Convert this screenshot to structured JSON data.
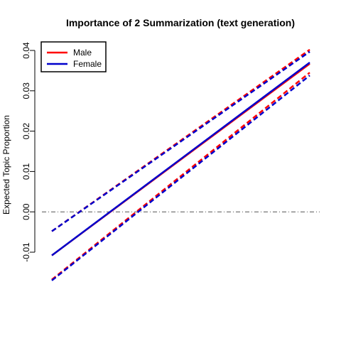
{
  "chart_data": {
    "type": "line",
    "title": "Importance of 2 Summarization (text generation)",
    "xlabel": "",
    "ylabel": "Expected Topic Proportion",
    "ylim": [
      -0.0165,
      0.0415
    ],
    "yticks": [
      -0.01,
      0.0,
      0.01,
      0.02,
      0.03,
      0.04
    ],
    "ytick_labels": [
      "-0.01",
      "0.00",
      "0.01",
      "0.02",
      "0.03",
      "0.04"
    ],
    "xlim": [
      0,
      1
    ],
    "reference_line": {
      "y": 0.0,
      "style": "dash-dot",
      "color": "#555555"
    },
    "legend": {
      "position": "top-left",
      "entries": [
        "Male",
        "Female"
      ]
    },
    "series": [
      {
        "name": "Male",
        "color": "#ff0000",
        "role": "estimate",
        "x": [
          0,
          1
        ],
        "values": [
          -0.0108,
          0.0367
        ]
      },
      {
        "color": "#ff0000",
        "role": "upper-ci",
        "x": [
          0,
          1
        ],
        "values": [
          -0.0048,
          0.0402
        ]
      },
      {
        "color": "#ff0000",
        "role": "lower-ci",
        "x": [
          0,
          1
        ],
        "values": [
          -0.0168,
          0.0345
        ]
      },
      {
        "name": "Female",
        "color": "#0000cc",
        "role": "estimate",
        "x": [
          0,
          1
        ],
        "values": [
          -0.0108,
          0.037
        ]
      },
      {
        "color": "#0000cc",
        "role": "upper-ci",
        "x": [
          0,
          1
        ],
        "values": [
          -0.0048,
          0.0397
        ]
      },
      {
        "color": "#0000cc",
        "role": "lower-ci",
        "x": [
          0,
          1
        ],
        "values": [
          -0.017,
          0.0338
        ]
      }
    ]
  }
}
